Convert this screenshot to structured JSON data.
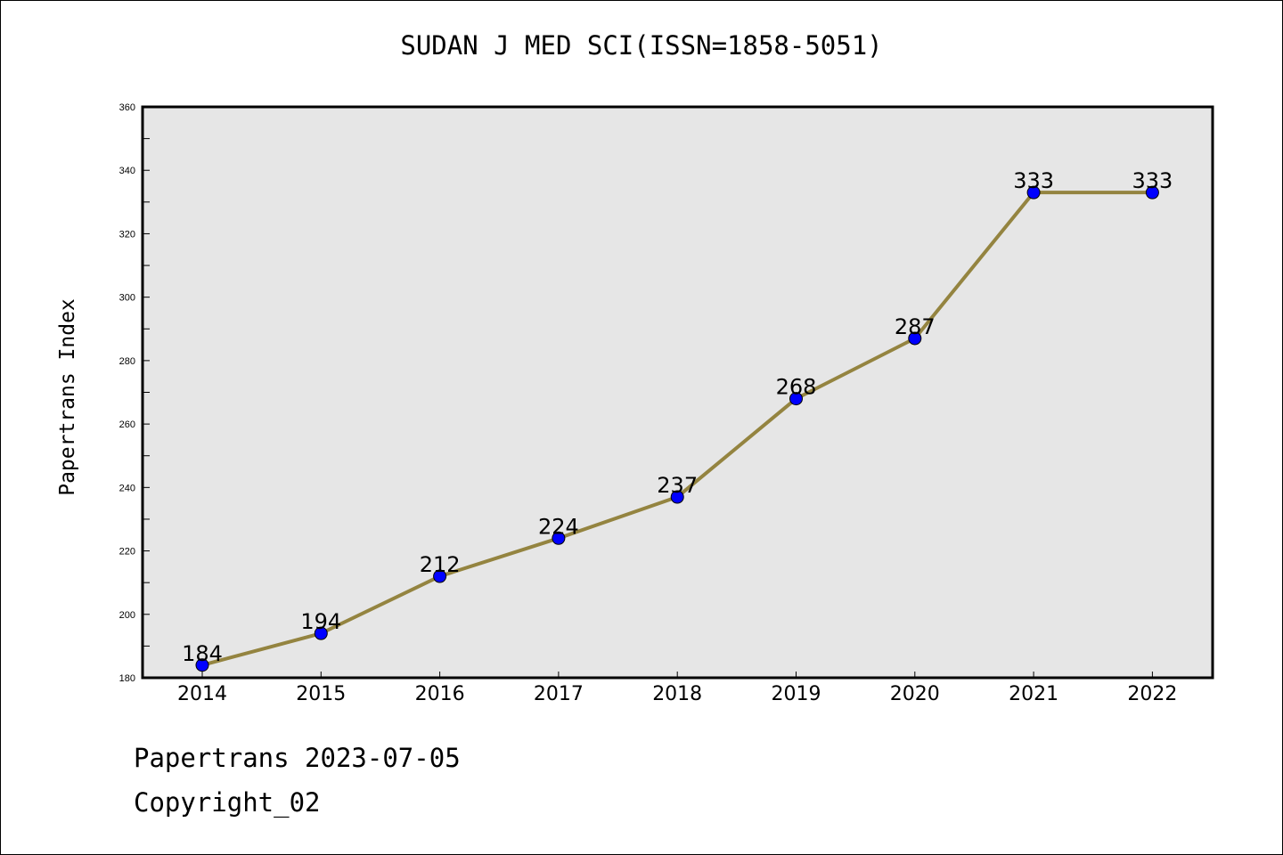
{
  "chart_data": {
    "type": "line",
    "title": "SUDAN J MED SCI(ISSN=1858-5051)",
    "ylabel": "Papertrans Index",
    "xlabel": "",
    "categories": [
      "2014",
      "2015",
      "2016",
      "2017",
      "2018",
      "2019",
      "2020",
      "2021",
      "2022"
    ],
    "series": [
      {
        "values": [
          184,
          194,
          212,
          224,
          237,
          268,
          287,
          333,
          333
        ]
      }
    ],
    "data_labels": [
      "184",
      "194",
      "212",
      "224",
      "237",
      "268",
      "287",
      "333",
      "333"
    ],
    "ylim": [
      180,
      360
    ],
    "yticks": [
      "180",
      "200",
      "220",
      "240",
      "260",
      "280",
      "300",
      "320",
      "340",
      "360"
    ],
    "grid": false,
    "legend": "none",
    "colors": {
      "line": "#948440",
      "marker": "#0000ff",
      "plot_background": "#e6e6e6"
    }
  },
  "footer": {
    "line1": "Papertrans 2023-07-05",
    "line2": "Copyright_02"
  }
}
